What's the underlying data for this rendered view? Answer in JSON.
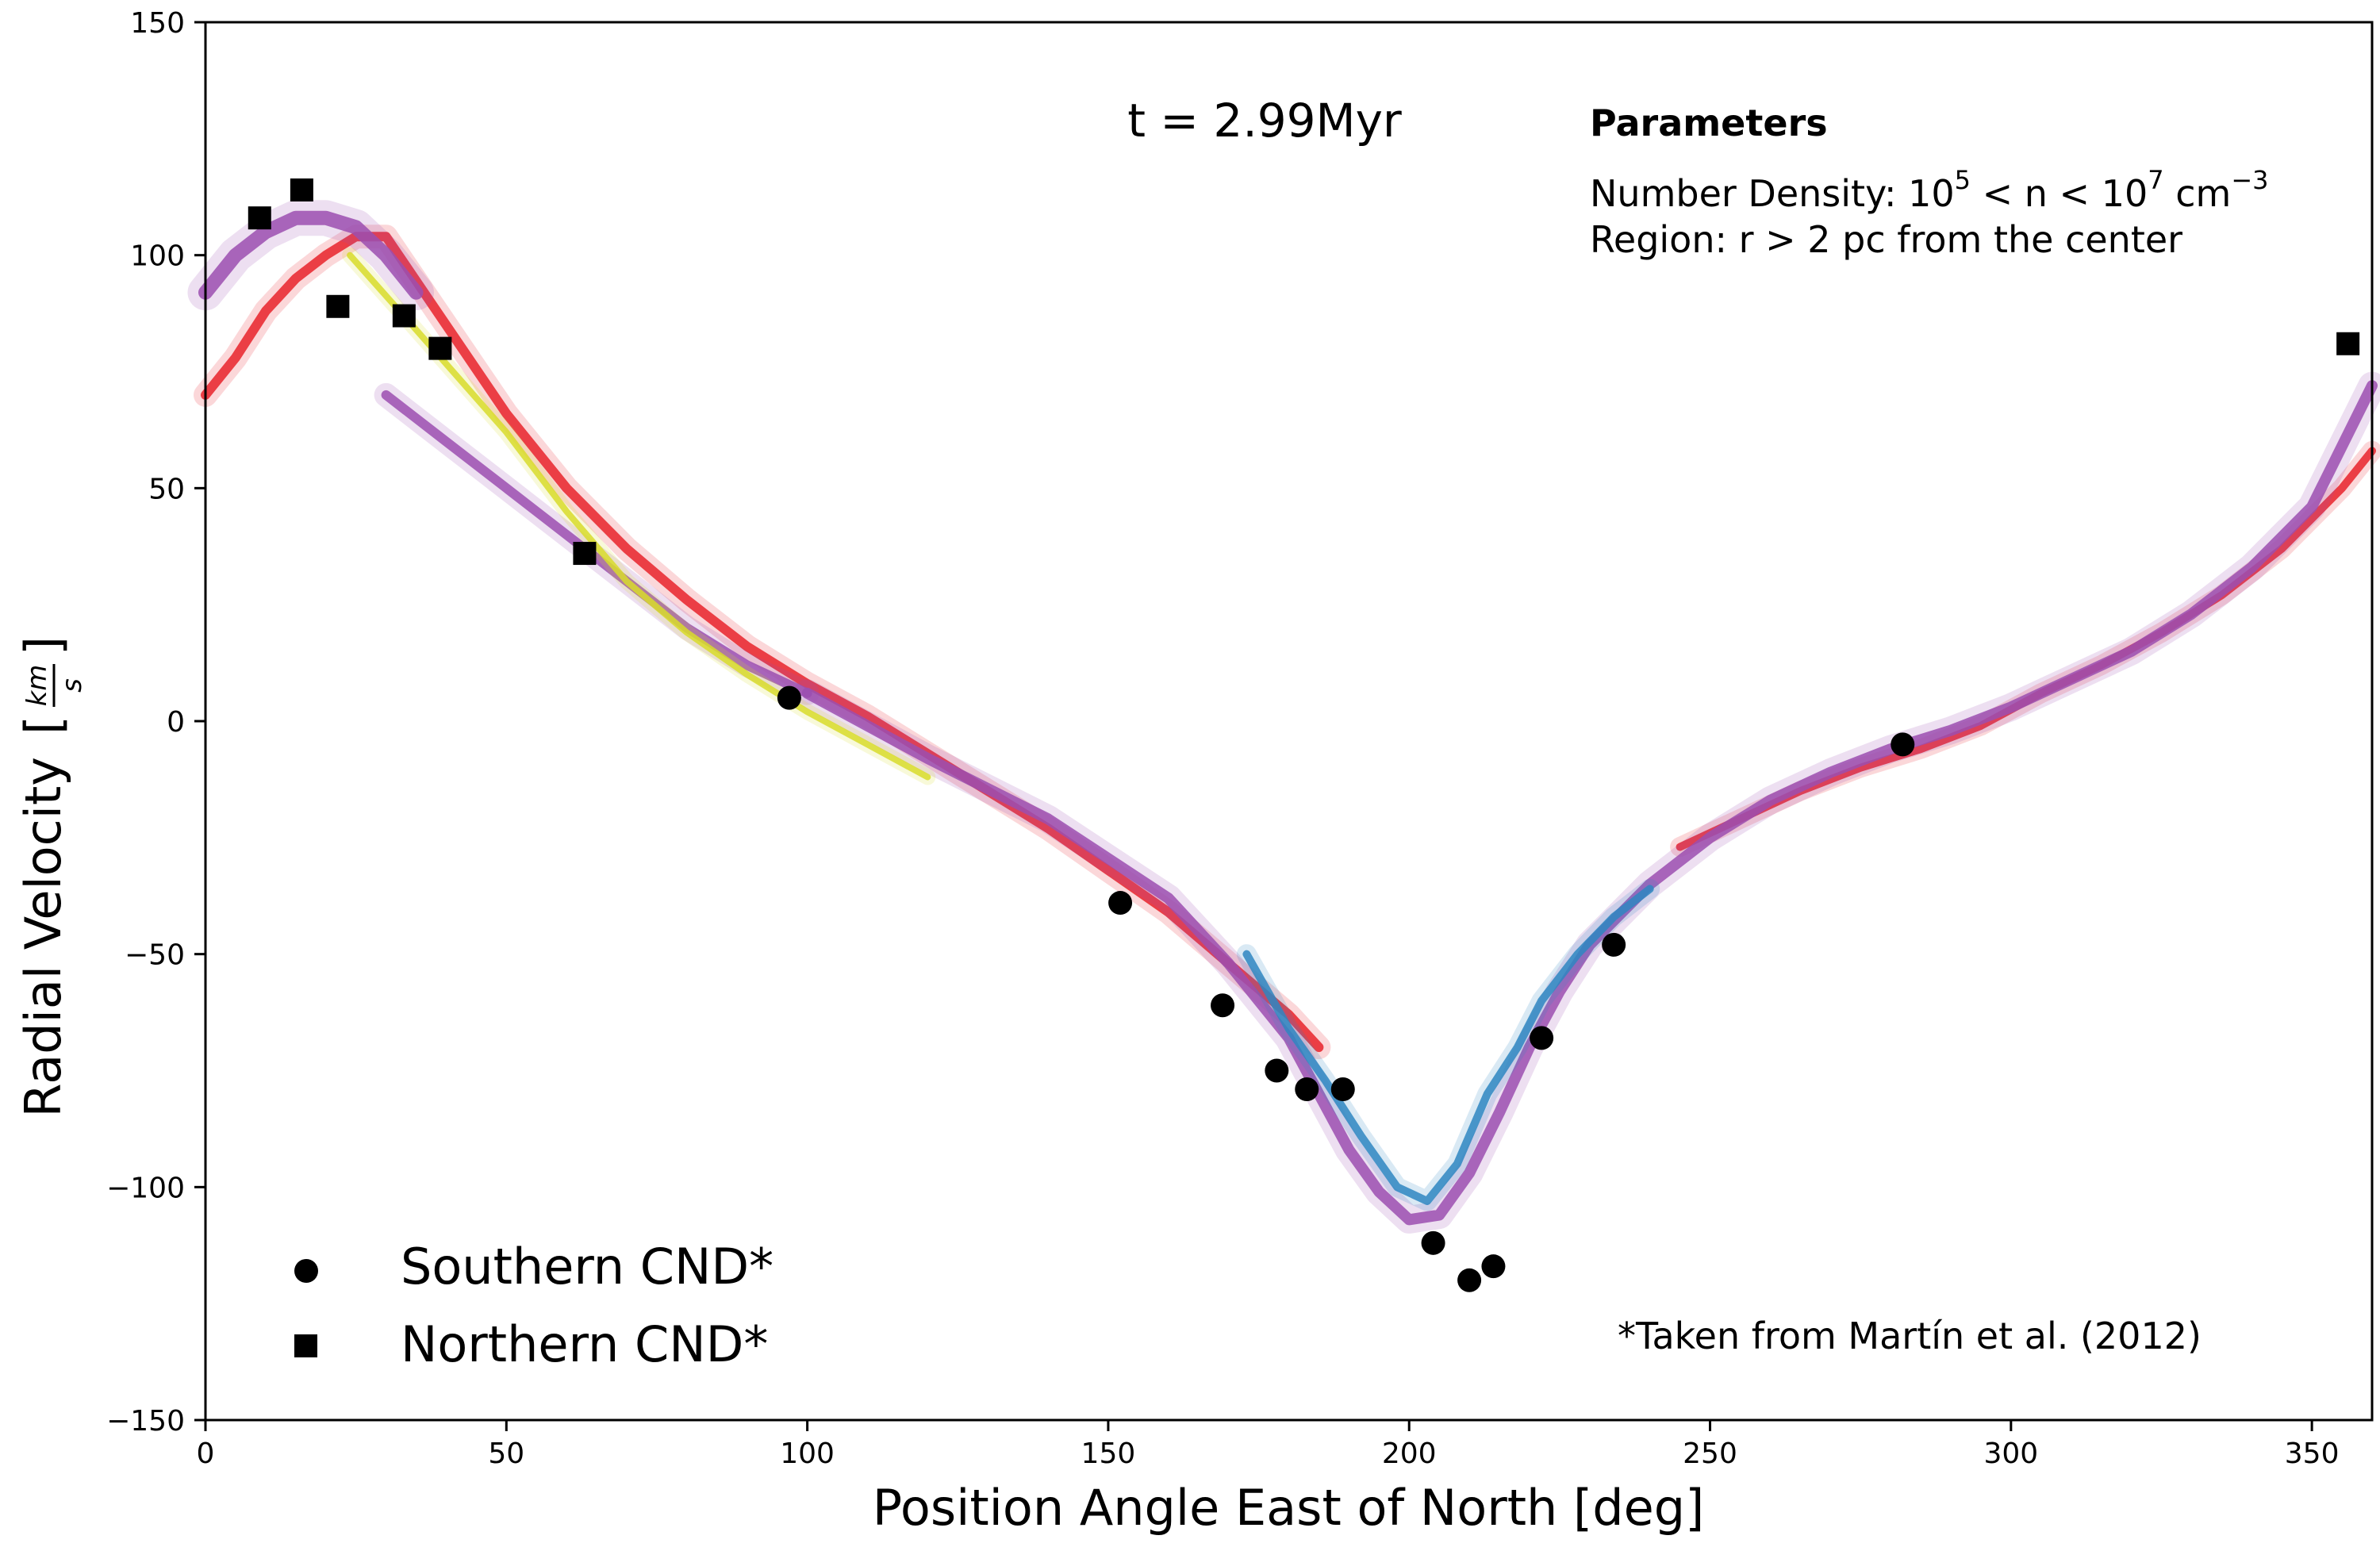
{
  "chart_data": {
    "type": "scatter",
    "title": "",
    "annotation": "t = 2.99Myr",
    "xlabel": "Position Angle East of North [deg]",
    "ylabel": "Radial Velocity",
    "ylabel_unit_num": "km",
    "ylabel_unit_den": "s",
    "xlim": [
      0,
      360
    ],
    "ylim": [
      -150,
      150
    ],
    "xticks": [
      0,
      50,
      100,
      150,
      200,
      250,
      300,
      350
    ],
    "yticks": [
      -150,
      -100,
      -50,
      0,
      50,
      100,
      150
    ],
    "ytick_labels": [
      "−150",
      "−100",
      "−50",
      "0",
      "50",
      "100",
      "150"
    ],
    "grid": false,
    "params_box": {
      "title": "Parameters",
      "density_prefix": "Number Density: 10",
      "density_exp_low": "5",
      "density_middle": " < n < 10",
      "density_exp_high": "7",
      "density_unit": " cm",
      "density_unit_exp": "−3",
      "region": "Region: r > 2 pc from the center"
    },
    "reference_note": "*Taken from Martín et al. (2012)",
    "legend": {
      "position": "lower-left",
      "entries": [
        {
          "label": "Southern CND*",
          "marker": "circle"
        },
        {
          "label": "Northern CND*",
          "marker": "square"
        }
      ]
    },
    "series": [
      {
        "name": "Southern CND*",
        "marker": "circle",
        "color": "#000000",
        "x": [
          97,
          152,
          169,
          178,
          183,
          189,
          204,
          210,
          214,
          222,
          234,
          282
        ],
        "y": [
          5,
          -39,
          -61,
          -75,
          -79,
          -79,
          -112,
          -120,
          -117,
          -68,
          -48,
          -5
        ]
      },
      {
        "name": "Northern CND*",
        "marker": "square",
        "color": "#000000",
        "x": [
          9,
          16,
          22,
          33,
          39,
          63,
          356
        ],
        "y": [
          108,
          114,
          89,
          87,
          80,
          36,
          81
        ]
      }
    ],
    "simulation_bands": [
      {
        "name": "red-particles",
        "color": "#e8232a",
        "segments": [
          {
            "x": [
              0,
              5,
              10,
              15,
              20,
              25,
              30,
              40,
              50,
              60,
              70,
              80,
              90,
              100,
              110,
              120,
              130,
              140,
              150,
              160,
              170,
              180,
              185
            ],
            "y": [
              70,
              78,
              88,
              95,
              100,
              104,
              104,
              85,
              66,
              50,
              37,
              26,
              16,
              8,
              1,
              -7,
              -15,
              -23,
              -32,
              -41,
              -52,
              -63,
              -70
            ],
            "width": 6
          },
          {
            "x": [
              245,
              255,
              265,
              275,
              285,
              295,
              305,
              315,
              325,
              335,
              345,
              355,
              360
            ],
            "y": [
              -27,
              -21,
              -15,
              -10,
              -6,
              -1,
              6,
              12,
              19,
              27,
              37,
              50,
              58
            ],
            "width": 5
          }
        ]
      },
      {
        "name": "purple-particles",
        "color": "#9b4fb0",
        "segments": [
          {
            "x": [
              0,
              5,
              10,
              15,
              20,
              25,
              30,
              35
            ],
            "y": [
              92,
              100,
              105,
              108,
              108,
              106,
              100,
              92
            ],
            "width": 9
          },
          {
            "x": [
              30,
              40,
              50,
              60,
              70,
              80,
              90,
              100
            ],
            "y": [
              70,
              60,
              50,
              40,
              30,
              20,
              12,
              6
            ],
            "width": 6
          },
          {
            "x": [
              100,
              120,
              140,
              160,
              170,
              180,
              185,
              190,
              195,
              200,
              205,
              210,
              215,
              220,
              225,
              230,
              240,
              250,
              260,
              270,
              280,
              290,
              300,
              310,
              320,
              330,
              340,
              350,
              360
            ],
            "y": [
              6,
              -8,
              -21,
              -38,
              -52,
              -68,
              -80,
              -92,
              -101,
              -107,
              -106,
              -97,
              -84,
              -70,
              -58,
              -48,
              -35,
              -25,
              -17,
              -11,
              -6,
              -2,
              3,
              9,
              15,
              23,
              33,
              46,
              72
            ],
            "width": 7
          }
        ]
      },
      {
        "name": "yellow-particles",
        "color": "#d8dc2a",
        "segments": [
          {
            "x": [
              24,
              35,
              50,
              60,
              70,
              80,
              90,
              100,
              110,
              120
            ],
            "y": [
              100,
              84,
              62,
              45,
              30,
              19,
              10,
              2,
              -5,
              -12
            ],
            "width": 4
          }
        ]
      },
      {
        "name": "blue-particles",
        "color": "#2e86c1",
        "segments": [
          {
            "x": [
              173,
              180,
              186,
              192,
              198,
              203,
              208,
              213,
              218,
              222,
              228,
              234,
              240
            ],
            "y": [
              -50,
              -66,
              -77,
              -89,
              -100,
              -103,
              -95,
              -80,
              -70,
              -60,
              -50,
              -42,
              -36
            ],
            "width": 5
          }
        ]
      }
    ]
  }
}
